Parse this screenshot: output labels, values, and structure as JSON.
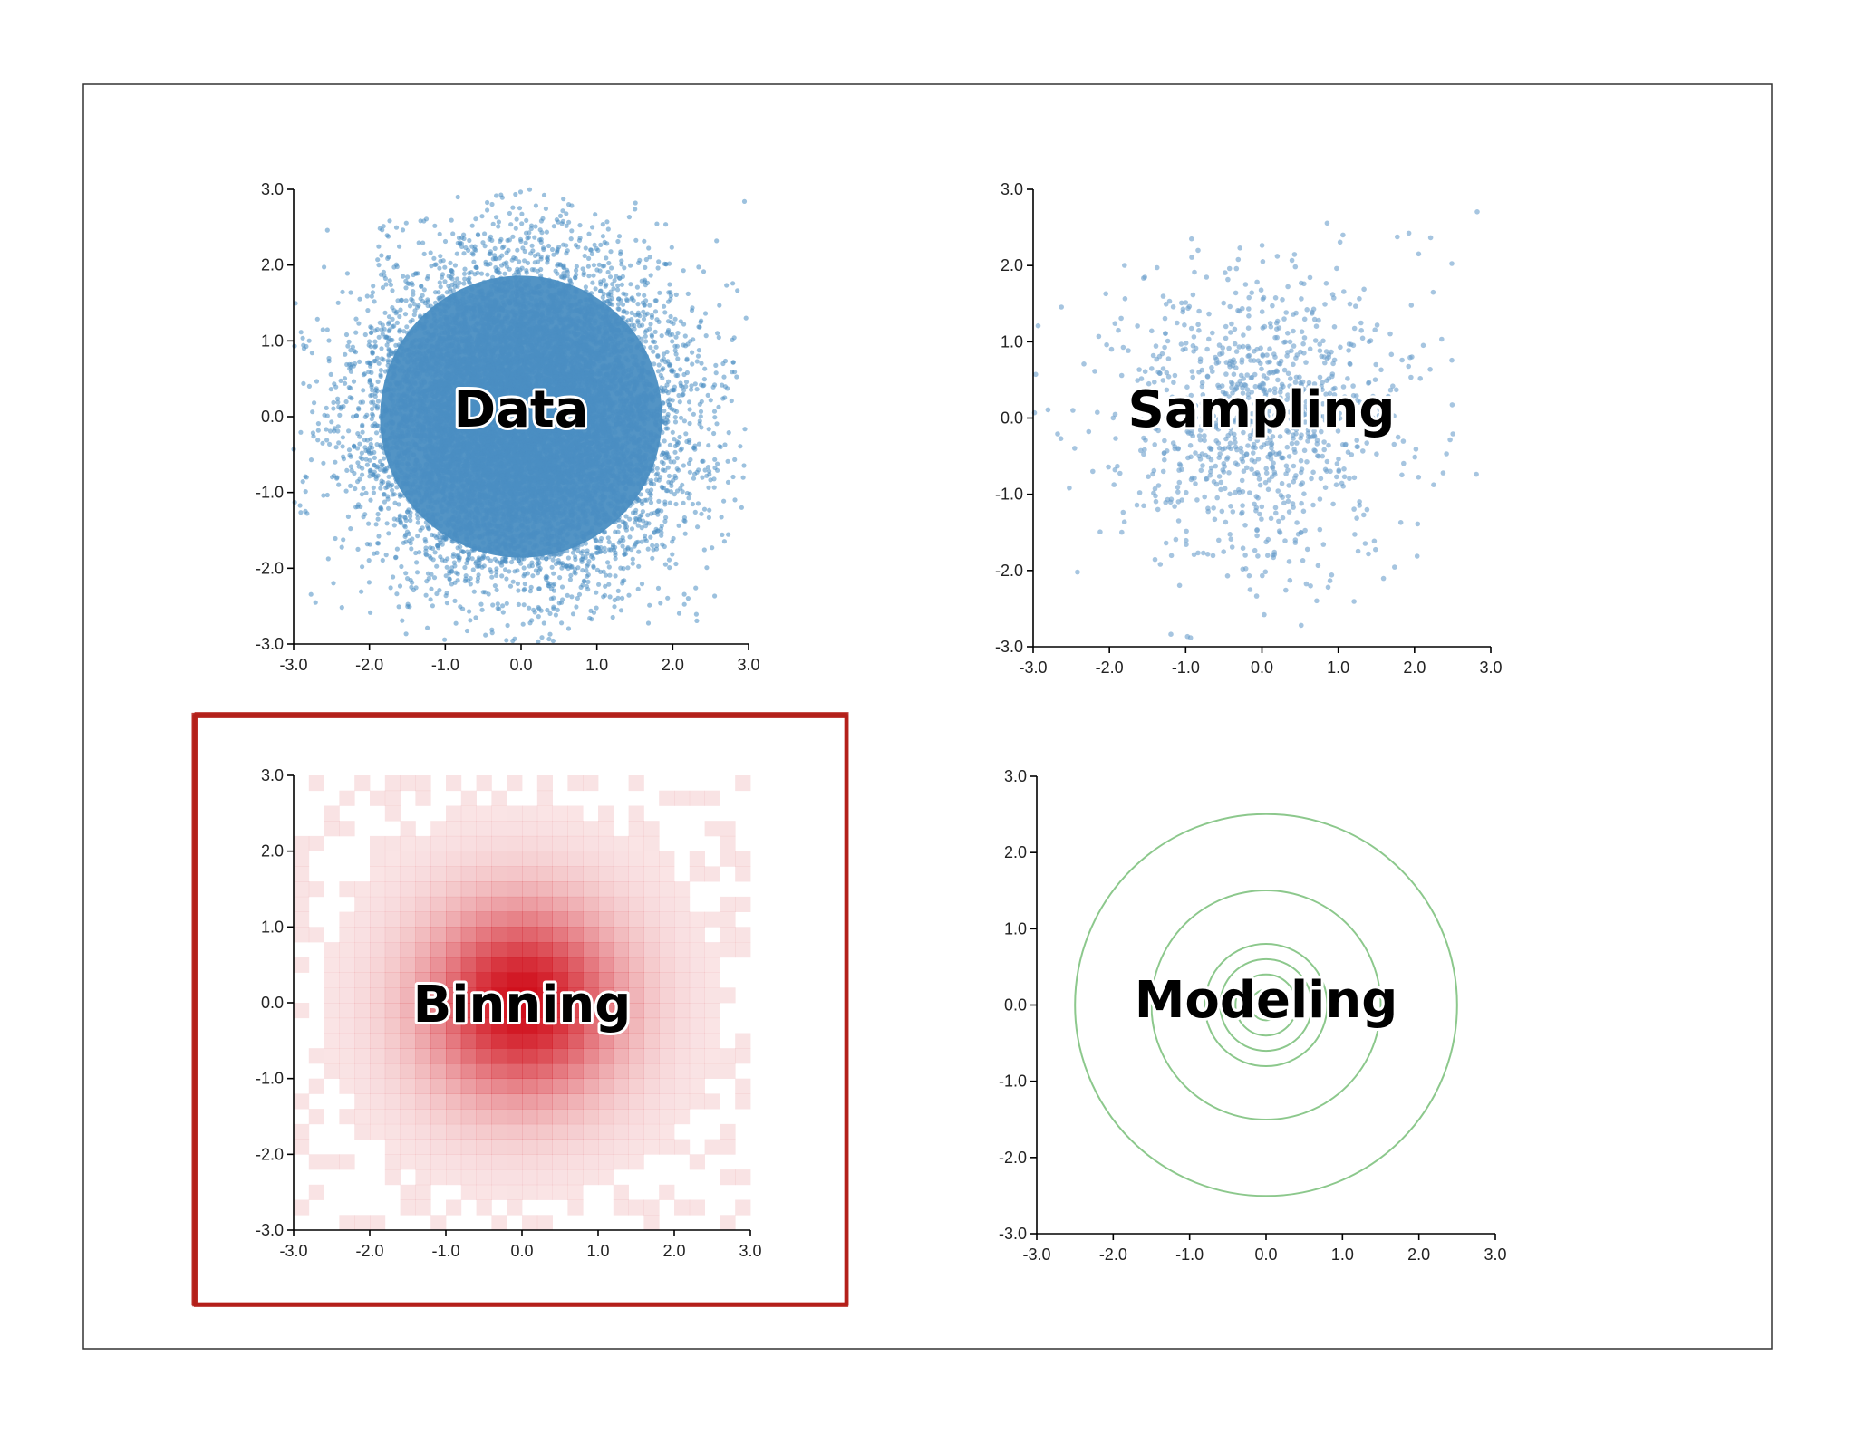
{
  "colors": {
    "data_points": "#4a8ec2",
    "sampling_points": "#6a9fcb",
    "binning_heat": "#d0101c",
    "modeling_contours": "#8cc88c",
    "highlight_frame": "#b4201a"
  },
  "chart_data": [
    {
      "type": "scatter",
      "title": "Data",
      "xlim": [
        -3,
        3
      ],
      "ylim": [
        -3,
        3
      ],
      "x_ticks": [
        "-3.0",
        "-2.0",
        "-1.0",
        "0.0",
        "1.0",
        "2.0",
        "3.0"
      ],
      "y_ticks": [
        "3.0",
        "2.0",
        "1.0",
        "0.0",
        "-1.0",
        "-2.0",
        "-3.0"
      ],
      "distribution": "bivariate normal, mean [0.0, 0.0], sd 1.0, dense overplotted points clipped to [-3, 3]",
      "highlighted": false
    },
    {
      "type": "scatter",
      "title": "Sampling",
      "xlim": [
        -3,
        3
      ],
      "ylim": [
        -3,
        3
      ],
      "x_ticks": [
        "-3.0",
        "-2.0",
        "-1.0",
        "0.0",
        "1.0",
        "2.0",
        "3.0"
      ],
      "y_ticks": [
        "3.0",
        "2.0",
        "1.0",
        "0.0",
        "-1.0",
        "-2.0",
        "-3.0"
      ],
      "distribution": "random sample of about 1000 points from a bivariate normal, mean [0.0, 0.0], sd 1.0",
      "highlighted": false
    },
    {
      "type": "heatmap",
      "title": "Binning",
      "xlim": [
        -3,
        3
      ],
      "ylim": [
        -3,
        3
      ],
      "x_ticks": [
        "-3.0",
        "-2.0",
        "-1.0",
        "0.0",
        "1.0",
        "2.0",
        "3.0"
      ],
      "y_ticks": [
        "3.0",
        "2.0",
        "1.0",
        "0.0",
        "-1.0",
        "-2.0",
        "-3.0"
      ],
      "bins": [
        30,
        30
      ],
      "distribution": "2D binned counts of a bivariate normal, peak density at (0.0, 0.0)",
      "highlighted": true
    },
    {
      "type": "line",
      "title": "Modeling",
      "xlim": [
        -3,
        3
      ],
      "ylim": [
        -3,
        3
      ],
      "x_ticks": [
        "-3.0",
        "-2.0",
        "-1.0",
        "0.0",
        "1.0",
        "2.0",
        "3.0"
      ],
      "y_ticks": [
        "3.0",
        "2.0",
        "1.0",
        "0.0",
        "-1.0",
        "-2.0",
        "-3.0"
      ],
      "contours": {
        "center": [
          0.0,
          0.0
        ],
        "radii": [
          2.5,
          1.5,
          0.8,
          0.6,
          0.4,
          0.2
        ]
      },
      "highlighted": false
    }
  ]
}
